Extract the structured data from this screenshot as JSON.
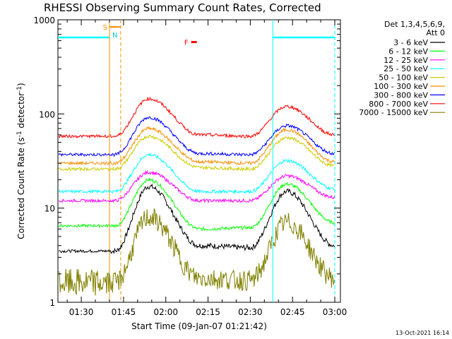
{
  "chart_data": {
    "type": "line",
    "title": "RHESSI Observing Summary Count Rates, Corrected",
    "xlabel": "Start Time (09-Jan-07 01:21:42)",
    "ylabel": "Corrected Count Rate (s",
    "ylabel_exponent": "-1",
    "ylabel_suffix": " detector",
    "ylabel_close": ")",
    "yscale": "log",
    "ylim": [
      1,
      1000
    ],
    "xlim": [
      "01:21:42",
      "03:02:00"
    ],
    "x_ticks": [
      "01:30",
      "01:45",
      "02:00",
      "02:15",
      "02:30",
      "02:45",
      "03:00"
    ],
    "y_ticks": [
      "1",
      "10",
      "100",
      "1000"
    ],
    "legend_header": [
      "Det 1,3,4,5,6,9,",
      "Att 0"
    ],
    "legend_position": "right",
    "series": [
      {
        "name": "3 - 6 keV",
        "color": "#000000",
        "values": [
          3.5,
          3.5,
          17,
          4,
          3.8,
          15,
          4
        ]
      },
      {
        "name": "6 - 12 keV",
        "color": "#00ff00",
        "values": [
          6.5,
          6.5,
          20,
          6,
          6.2,
          18,
          7
        ]
      },
      {
        "name": "12 - 25 keV",
        "color": "#ff00ff",
        "values": [
          12,
          12,
          24,
          12,
          12,
          22,
          13
        ]
      },
      {
        "name": "25 - 50 keV",
        "color": "#00ffff",
        "values": [
          15,
          15,
          37,
          15,
          15,
          32,
          16
        ]
      },
      {
        "name": "50 - 100 keV",
        "color": "#cccc00",
        "values": [
          26,
          26,
          58,
          27,
          26,
          56,
          28
        ]
      },
      {
        "name": "100 - 300 keV",
        "color": "#ff8c00",
        "values": [
          30,
          30,
          70,
          31,
          30,
          68,
          31
        ]
      },
      {
        "name": "300 - 800 keV",
        "color": "#0000ff",
        "values": [
          37,
          37,
          92,
          38,
          37,
          75,
          38
        ]
      },
      {
        "name": "800 - 7000 keV",
        "color": "#ff0000",
        "values": [
          58,
          58,
          145,
          60,
          58,
          120,
          60
        ]
      },
      {
        "name": "7000 - 15000 keV",
        "color": "#808000",
        "values": [
          1.6,
          1.6,
          8,
          1.8,
          1.7,
          7,
          1.8
        ]
      }
    ],
    "x_series_times": [
      "01:21:42",
      "01:42",
      "01:54",
      "02:12",
      "02:30",
      "02:43",
      "03:00"
    ],
    "annotations": {
      "night_bars": [
        {
          "start": "01:21:42",
          "end": "01:40",
          "level": 650
        },
        {
          "start": "02:38",
          "end": "03:00",
          "level": 650
        }
      ],
      "saa": {
        "label_s": "S",
        "label_n": "N",
        "start": "01:40",
        "end": "01:44",
        "level": 900
      },
      "flare": {
        "label": "F",
        "time": "02:09",
        "level": 580
      }
    },
    "grid": false
  },
  "footer": {
    "timestamp": "13-Oct-2021 16:14"
  }
}
